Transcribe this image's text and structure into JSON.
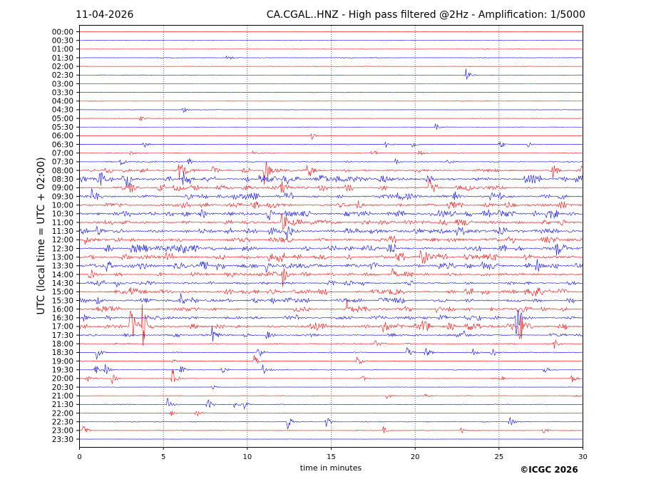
{
  "chart_data": {
    "type": "line",
    "subtype": "helicorder",
    "date": "11-04-2026",
    "title": "CA.CGAL..HNZ - High pass filtered @2Hz - Amplification: 1/5000",
    "xlabel": "time in minutes",
    "ylabel": "UTC (local time = UTC + 02:00)",
    "xlim": [
      0,
      30
    ],
    "xticks": [
      "0",
      "5",
      "10",
      "15",
      "20",
      "25",
      "30"
    ],
    "grid_x": [
      5,
      10,
      15,
      20,
      25
    ],
    "row_labels": [
      "00:00",
      "00:30",
      "01:00",
      "01:30",
      "02:00",
      "02:30",
      "03:00",
      "03:30",
      "04:00",
      "04:30",
      "05:00",
      "05:30",
      "06:00",
      "06:30",
      "07:00",
      "07:30",
      "08:00",
      "08:30",
      "09:00",
      "09:30",
      "10:00",
      "10:30",
      "11:00",
      "11:30",
      "12:00",
      "12:30",
      "13:00",
      "13:30",
      "14:00",
      "14:30",
      "15:00",
      "15:30",
      "16:00",
      "16:30",
      "17:00",
      "17:30",
      "18:00",
      "18:30",
      "19:00",
      "19:30",
      "20:00",
      "20:30",
      "21:00",
      "21:30",
      "22:00",
      "22:30",
      "23:00",
      "23:30"
    ],
    "colors": [
      "#ff0000",
      "#0000ff"
    ],
    "noise_level": [
      0.03,
      0.03,
      0.03,
      0.05,
      0.03,
      0.03,
      0.03,
      0.03,
      0.03,
      0.03,
      0.03,
      0.03,
      0.03,
      0.04,
      0.05,
      0.08,
      0.25,
      0.45,
      0.35,
      0.4,
      0.4,
      0.45,
      0.4,
      0.45,
      0.4,
      0.45,
      0.5,
      0.45,
      0.3,
      0.3,
      0.35,
      0.4,
      0.35,
      0.35,
      0.45,
      0.2,
      0.08,
      0.06,
      0.06,
      0.05,
      0.05,
      0.03,
      0.04,
      0.05,
      0.04,
      0.06,
      0.04,
      0.02
    ],
    "events": [
      [
        3,
        8.8,
        0.6
      ],
      [
        5,
        23.0,
        0.9
      ],
      [
        9,
        6.1,
        0.5
      ],
      [
        10,
        3.6,
        0.5
      ],
      [
        11,
        21.2,
        0.5
      ],
      [
        12,
        13.8,
        0.5
      ],
      [
        13,
        3.8,
        0.6
      ],
      [
        13,
        18.2,
        0.5
      ],
      [
        13,
        19.8,
        0.5
      ],
      [
        13,
        25.0,
        0.8
      ],
      [
        13,
        26.7,
        0.5
      ],
      [
        14,
        17.4,
        0.7
      ],
      [
        14,
        20.2,
        0.5
      ],
      [
        14,
        3.0,
        0.3
      ],
      [
        14,
        10.3,
        0.3
      ],
      [
        15,
        2.4,
        0.8
      ],
      [
        15,
        6.5,
        0.7
      ],
      [
        15,
        18.8,
        0.5
      ],
      [
        15,
        21.9,
        0.5
      ],
      [
        16,
        7.9,
        1.2
      ],
      [
        16,
        28.2,
        1.0
      ],
      [
        16,
        13.6,
        1.6
      ],
      [
        16,
        11.0,
        2.0
      ],
      [
        16,
        5.9,
        1.5
      ],
      [
        16,
        29.9,
        0.8
      ],
      [
        17,
        1.2,
        1.0
      ],
      [
        17,
        6.2,
        1.3
      ],
      [
        17,
        2.8,
        0.8
      ],
      [
        17,
        20.7,
        1.0
      ],
      [
        17,
        12.2,
        1.0
      ],
      [
        18,
        3.0,
        1.0
      ],
      [
        18,
        12.0,
        1.0
      ],
      [
        18,
        20.8,
        1.2
      ],
      [
        19,
        0.7,
        1.0
      ],
      [
        19,
        6.3,
        0.8
      ],
      [
        19,
        22.3,
        0.8
      ],
      [
        19,
        25.0,
        0.6
      ],
      [
        20,
        16.5,
        0.8
      ],
      [
        20,
        25.4,
        0.7
      ],
      [
        21,
        11.2,
        1.2
      ],
      [
        21,
        27.8,
        0.8
      ],
      [
        22,
        12.0,
        1.5
      ],
      [
        23,
        12.3,
        1.0
      ],
      [
        23,
        1.0,
        0.7
      ],
      [
        24,
        0.3,
        0.7
      ],
      [
        25,
        6.2,
        0.8
      ],
      [
        25,
        28.4,
        1.0
      ],
      [
        26,
        11.3,
        1.2
      ],
      [
        26,
        20.3,
        0.8
      ],
      [
        27,
        1.6,
        1.0
      ],
      [
        27,
        11.1,
        1.0
      ],
      [
        27,
        27.2,
        1.5
      ],
      [
        28,
        0.6,
        0.6
      ],
      [
        28,
        12.1,
        1.5
      ],
      [
        28,
        18.6,
        0.8
      ],
      [
        29,
        2.1,
        0.6
      ],
      [
        29,
        10.8,
        0.8
      ],
      [
        30,
        3.0,
        0.6
      ],
      [
        30,
        27.0,
        1.5
      ],
      [
        31,
        6.0,
        1.0
      ],
      [
        31,
        1.0,
        0.7
      ],
      [
        32,
        15.9,
        1.2
      ],
      [
        32,
        21.2,
        0.8
      ],
      [
        33,
        26.0,
        2.2
      ],
      [
        33,
        0.2,
        0.5
      ],
      [
        33,
        12.9,
        0.6
      ],
      [
        34,
        3.0,
        3.0
      ],
      [
        34,
        26.2,
        3.0
      ],
      [
        34,
        18.1,
        1.0
      ],
      [
        34,
        20.3,
        1.0
      ],
      [
        34,
        3.7,
        4.0
      ],
      [
        35,
        7.9,
        1.0
      ],
      [
        35,
        11.1,
        0.6
      ],
      [
        35,
        22.9,
        0.5
      ],
      [
        36,
        17.6,
        0.6
      ],
      [
        36,
        28.3,
        0.7
      ],
      [
        37,
        1.0,
        0.8
      ],
      [
        37,
        10.6,
        1.0
      ],
      [
        37,
        19.5,
        0.8
      ],
      [
        37,
        20.6,
        1.0
      ],
      [
        37,
        23.4,
        0.7
      ],
      [
        37,
        24.5,
        1.0
      ],
      [
        38,
        10.4,
        0.8
      ],
      [
        38,
        16.5,
        0.7
      ],
      [
        38,
        5.5,
        0.4
      ],
      [
        39,
        0.9,
        0.8
      ],
      [
        39,
        1.5,
        0.8
      ],
      [
        39,
        6.0,
        0.7
      ],
      [
        39,
        8.5,
        0.6
      ],
      [
        39,
        10.9,
        0.7
      ],
      [
        39,
        27.7,
        0.6
      ],
      [
        40,
        5.5,
        1.6
      ],
      [
        40,
        0.4,
        0.6
      ],
      [
        40,
        1.9,
        0.8
      ],
      [
        40,
        16.8,
        0.5
      ],
      [
        40,
        25.0,
        0.5
      ],
      [
        40,
        29.3,
        0.7
      ],
      [
        41,
        7.9,
        0.3
      ],
      [
        42,
        18.3,
        0.5
      ],
      [
        42,
        20.5,
        0.6
      ],
      [
        42,
        29.5,
        0.3
      ],
      [
        43,
        5.2,
        1.0
      ],
      [
        43,
        7.6,
        0.8
      ],
      [
        43,
        9.2,
        0.5
      ],
      [
        43,
        9.8,
        0.6
      ],
      [
        44,
        5.4,
        0.6
      ],
      [
        44,
        6.9,
        0.6
      ],
      [
        45,
        12.4,
        1.0
      ],
      [
        45,
        14.7,
        0.8
      ],
      [
        45,
        25.6,
        0.8
      ],
      [
        46,
        0.2,
        0.8
      ],
      [
        46,
        18.1,
        0.5
      ],
      [
        46,
        22.7,
        0.5
      ],
      [
        46,
        27.6,
        0.5
      ]
    ]
  },
  "footer": {
    "copyright": "©ICGC 2026"
  }
}
